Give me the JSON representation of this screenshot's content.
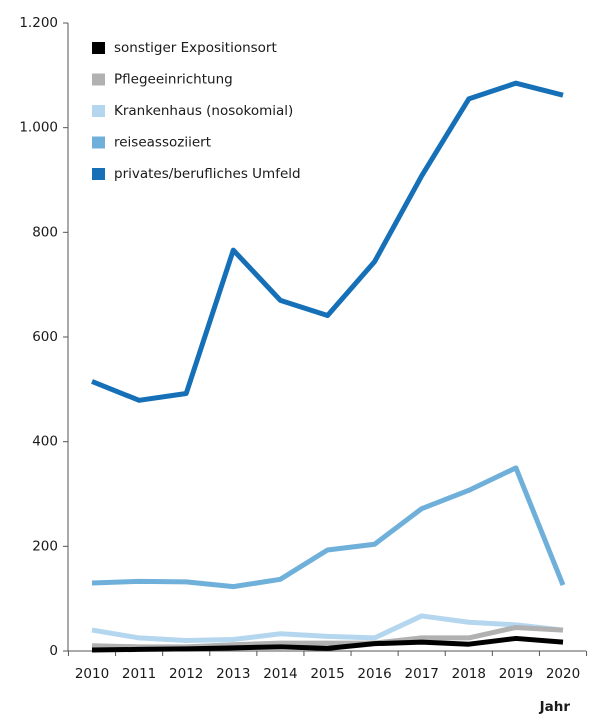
{
  "chart_data": {
    "type": "line",
    "x_label": "Jahr",
    "categories": [
      "2010",
      "2011",
      "2012",
      "2013",
      "2014",
      "2015",
      "2016",
      "2017",
      "2018",
      "2019",
      "2020"
    ],
    "series": [
      {
        "name": "sonstiger Expositionsort",
        "color": "#000000",
        "values": [
          2,
          3,
          4,
          6,
          8,
          5,
          14,
          17,
          13,
          24,
          17
        ]
      },
      {
        "name": "Pflegeeinrichtung",
        "color": "#b1b1b1",
        "values": [
          10,
          8,
          8,
          12,
          15,
          15,
          15,
          25,
          25,
          45,
          40
        ]
      },
      {
        "name": "Krankenhaus (nosokomial)",
        "color": "#b4d7ef",
        "values": [
          40,
          25,
          20,
          22,
          33,
          28,
          25,
          67,
          55,
          50,
          40
        ]
      },
      {
        "name": "reiseassoziiert",
        "color": "#6fb0db",
        "values": [
          130,
          133,
          132,
          123,
          137,
          193,
          204,
          272,
          307,
          350,
          126
        ]
      },
      {
        "name": "privates/berufliches Umfeld",
        "color": "#1570b8",
        "values": [
          515,
          479,
          492,
          766,
          670,
          641,
          744,
          908,
          1055,
          1085,
          1062
        ]
      }
    ],
    "ylim": [
      0,
      1200
    ],
    "yticks": [
      0,
      200,
      400,
      600,
      800,
      {
        "value": 1000,
        "label": "1.000"
      },
      {
        "value": 1200,
        "label": "1.200"
      }
    ],
    "legend": "upper-left"
  }
}
